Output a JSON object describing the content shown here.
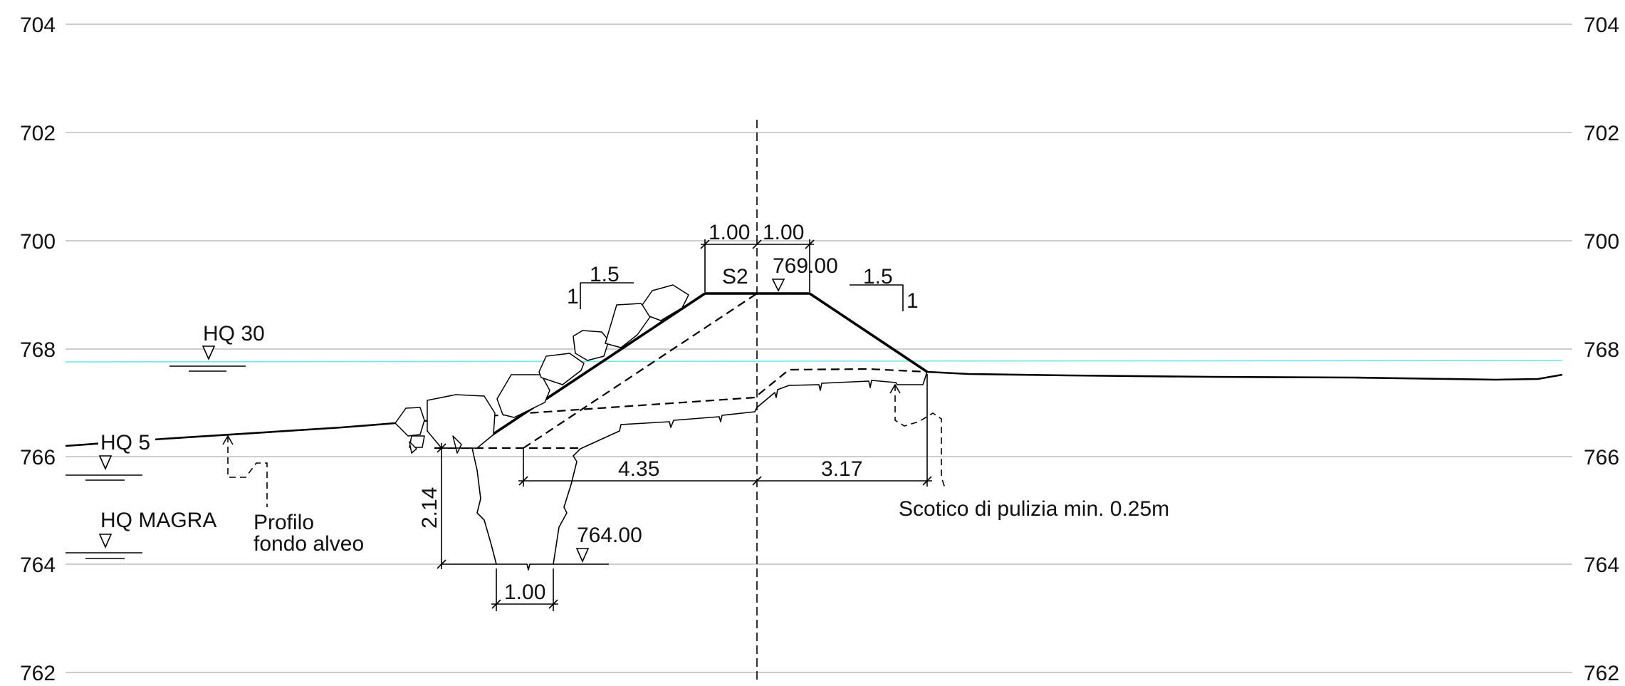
{
  "axes": {
    "left_labels": [
      "704",
      "702",
      "700",
      "768",
      "766",
      "764",
      "762"
    ],
    "right_labels": [
      "704",
      "702",
      "700",
      "768",
      "766",
      "764",
      "762"
    ]
  },
  "water_levels": {
    "hq30": "HQ 30",
    "hq5": "HQ 5",
    "hq_magra": "HQ MAGRA"
  },
  "section": {
    "name": "S2",
    "crest_elevation": "769.00",
    "trench_bottom_elevation": "764.00"
  },
  "dimensions": {
    "crest_left": "1.00",
    "crest_right": "1.00",
    "left_offset": "4.35",
    "right_offset": "3.17",
    "trench_depth": "2.14",
    "trench_width": "1.00"
  },
  "slopes": {
    "left_run": "1.5",
    "left_rise": "1",
    "right_run": "1.5",
    "right_rise": "1"
  },
  "notes": {
    "riverbed_line1": "Profilo",
    "riverbed_line2": "fondo alveo",
    "stripping": "Scotico di pulizia min. 0.25m"
  },
  "colors": {
    "grid": "#bdbdbd",
    "water": "#6ee7ea",
    "lines": "#000000"
  }
}
